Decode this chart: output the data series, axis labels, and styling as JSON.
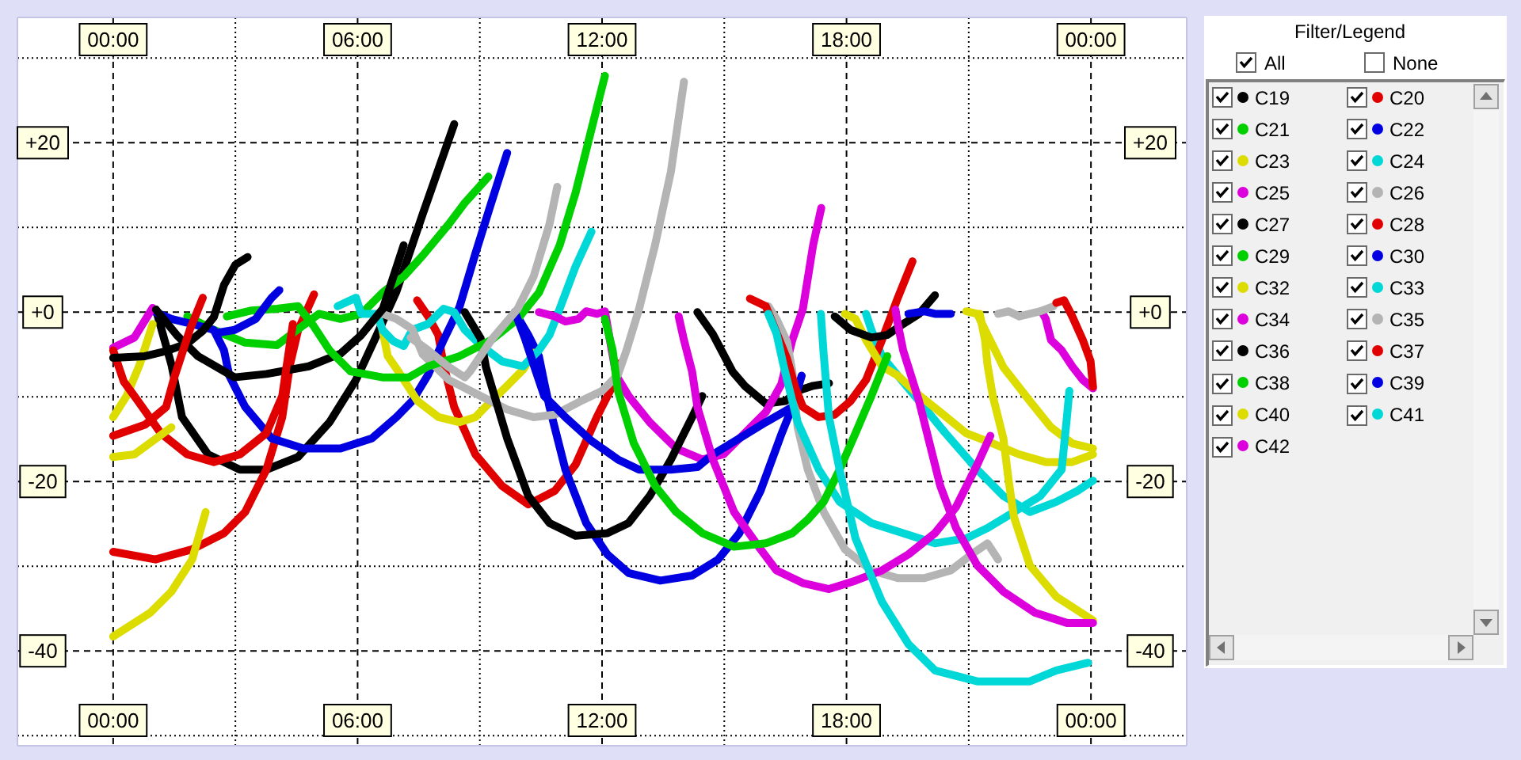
{
  "chart_data": {
    "type": "line",
    "xlim": [
      -2.35,
      26.35
    ],
    "xticks": [
      {
        "value": 0,
        "label": "00:00"
      },
      {
        "value": 3,
        "label": null
      },
      {
        "value": 6,
        "label": "06:00"
      },
      {
        "value": 9,
        "label": null
      },
      {
        "value": 12,
        "label": "12:00"
      },
      {
        "value": 15,
        "label": null
      },
      {
        "value": 18,
        "label": "18:00"
      },
      {
        "value": 21,
        "label": null
      },
      {
        "value": 24,
        "label": "00:00"
      }
    ],
    "x2lim": [
      -2.35,
      26.35
    ],
    "x2ticks": [
      {
        "value": 0,
        "label": "00:00"
      },
      {
        "value": 3,
        "label": null
      },
      {
        "value": 6,
        "label": "06:00"
      },
      {
        "value": 9,
        "label": null
      },
      {
        "value": 12,
        "label": "12:00"
      },
      {
        "value": 15,
        "label": null
      },
      {
        "value": 18,
        "label": "18:00"
      },
      {
        "value": 21,
        "label": null
      },
      {
        "value": 24,
        "label": "00:00"
      }
    ],
    "ylim": [
      -51.2,
      34.8
    ],
    "yticks": [
      {
        "value": 30,
        "label": null
      },
      {
        "value": 20,
        "label": "+20"
      },
      {
        "value": 10,
        "label": null
      },
      {
        "value": 0,
        "label": "+0"
      },
      {
        "value": -10,
        "label": null
      },
      -20,
      {
        "value": -30,
        "label": null
      },
      -40,
      {
        "value": -50,
        "label": null
      }
    ],
    "y2lim": [
      -51.2,
      34.8
    ],
    "y2ticks": [
      {
        "value": 30,
        "label": null
      },
      {
        "value": 20,
        "label": "+20"
      },
      {
        "value": 10,
        "label": null
      },
      {
        "value": 0,
        "label": "+0"
      },
      {
        "value": -10,
        "label": null
      },
      -20,
      {
        "value": -30,
        "label": null
      },
      -40,
      {
        "value": -50,
        "label": null
      }
    ],
    "grid": true,
    "legend": "right",
    "legend_title": "Filter/Legend",
    "annotations": [
      "All",
      "None"
    ],
    "series": [
      {
        "name": "C19",
        "color": "#000000",
        "x": [
          1.05,
          1.43,
          1.69,
          2.33,
          3.11,
          3.76,
          4.54,
          5.31,
          5.96,
          6.48,
          6.95,
          7.6,
          8.37,
          11.0,
          14.34,
          14.72,
          15.2,
          15.5,
          16.02,
          16.5,
          16.8,
          17.18,
          17.57
        ],
        "values": [
          0.3,
          -6.2,
          -12.4,
          -16.8,
          -18.6,
          -18.6,
          -17.1,
          -13.0,
          -8.0,
          -2.6,
          2.4,
          11.6,
          22.2,
          null,
          0,
          -2.6,
          -7.0,
          -8.7,
          -10.8,
          -10.5,
          -9.3,
          -8.7,
          -8.4
        ]
      },
      {
        "name": "C20",
        "color": "#e00000",
        "x": [
          0,
          1.04,
          1.94,
          2.72,
          3.24,
          3.76,
          4.15,
          4.34,
          4.54,
          4.93,
          6.2,
          7.46,
          7.73,
          7.98,
          8.11,
          8.37,
          8.89,
          9.54,
          10.19,
          10.84,
          11.35,
          11.87,
          12.26,
          12.45
        ],
        "values": [
          -28.3,
          -29.2,
          -28.0,
          -26.1,
          -23.6,
          -18.6,
          -12.4,
          -6.2,
          -2.1,
          2.1,
          null,
          1.4,
          -0.5,
          -2.7,
          -6.2,
          -11.2,
          -16.8,
          -20.5,
          -22.7,
          -21.1,
          -18.0,
          -12.4,
          -8.7,
          -6.0
        ]
      },
      {
        "name": "C21",
        "color": "#00d000",
        "x": [
          1.82,
          2.47,
          3.24,
          4.02,
          4.6,
          5.05,
          5.58,
          6.09,
          6.61,
          7.13,
          7.6,
          8.24,
          8.63,
          9.21
        ],
        "values": [
          -0.5,
          -2.1,
          -3.6,
          -3.9,
          -1.8,
          -0.2,
          -0.8,
          -0.2,
          2.3,
          4.2,
          6.7,
          10.4,
          12.9,
          16.0
        ]
      },
      {
        "name": "C22",
        "color": "#0000e0",
        "x": [
          1.04,
          1.43,
          1.94,
          2.47,
          2.72,
          2.85,
          3.24,
          3.89,
          4.67,
          5.58,
          6.35,
          6.95,
          7.34,
          7.73,
          8.11,
          8.5,
          8.89,
          9.28,
          9.67,
          9.76,
          9.86,
          10.19,
          10.45,
          10.58,
          10.71,
          11.1,
          11.61,
          12.13,
          12.65,
          13.43,
          14.21,
          14.85,
          15.37,
          15.89,
          16.41,
          16.67,
          16.9
        ],
        "values": [
          0,
          -0.8,
          -1.4,
          -2.1,
          -4.5,
          -7.5,
          -11.2,
          -14.9,
          -16.1,
          -16.1,
          -14.9,
          -12.4,
          -10.5,
          -7.4,
          -3.3,
          0.6,
          6.9,
          12.9,
          18.8,
          null,
          0,
          -2.7,
          -5.2,
          -8.3,
          -11.2,
          -18.6,
          -24.9,
          -28.6,
          -30.8,
          -31.7,
          -31.1,
          -29.2,
          -26.1,
          -21.1,
          -14.3,
          -11.2,
          -7.5
        ]
      },
      {
        "name": "C23",
        "color": "#dcdc00",
        "x": [
          0,
          0.33,
          0.65,
          0.97,
          3.5,
          6.61,
          6.74,
          7.0,
          7.47,
          7.99,
          8.5,
          8.89,
          9.28,
          9.67,
          10.06,
          10.32,
          15.0,
          20.94,
          21.21,
          21.4,
          21.72,
          21.85,
          22.5,
          23.02,
          23.54,
          24.05
        ],
        "values": [
          -12.4,
          -9.9,
          -6.2,
          -1.4,
          null,
          -2.1,
          -5.2,
          -7.0,
          -10.5,
          -12.4,
          -13.0,
          -12.4,
          -10.5,
          -8.7,
          -6.8,
          -4.8,
          null,
          0.1,
          -0.2,
          -2.1,
          -5.2,
          -6.5,
          -10.5,
          -13.6,
          -15.5,
          -16.1
        ]
      },
      {
        "name": "C24",
        "color": "#00d8d8",
        "x": [
          5.51,
          5.96,
          6.09,
          6.48,
          6.61,
          6.87,
          7.13,
          7.34,
          7.73,
          8.11,
          8.37,
          8.63,
          9.02,
          9.54,
          10.06,
          10.45,
          10.71,
          10.96,
          11.35,
          11.74,
          15.0,
          18.48,
          18.61,
          18.87,
          19.26,
          19.78,
          20.43,
          21.21,
          21.85,
          22.5,
          23.15,
          23.67,
          24.05
        ],
        "values": [
          0.7,
          1.7,
          -0.2,
          -0.2,
          -2.1,
          -3.4,
          -4.0,
          -2.1,
          -1.4,
          0.4,
          0,
          -2.1,
          -3.9,
          -5.8,
          -6.4,
          -4.5,
          -2.7,
          0.4,
          5.4,
          9.5,
          null,
          -0.2,
          -2.1,
          -5.2,
          -7.5,
          -10.5,
          -14.3,
          -18.6,
          -21.7,
          -23.6,
          -22.4,
          -21.1,
          -19.9
        ]
      },
      {
        "name": "C25",
        "color": "#dc00dc",
        "x": [
          0,
          0.52,
          0.97,
          5.0,
          10.45,
          10.84,
          11.1,
          11.42,
          11.61,
          11.87,
          12.07,
          12.2,
          12.35,
          12.65,
          13.17,
          13.82,
          14.46,
          14.98,
          15.5,
          16.02,
          16.4,
          16.67,
          16.93,
          17.18,
          17.38
        ],
        "values": [
          -4.2,
          -3.0,
          0.5,
          null,
          0,
          -0.5,
          -1.1,
          -0.8,
          0.1,
          -0.2,
          0.1,
          -3.5,
          -7.5,
          -9.9,
          -13.0,
          -16.1,
          -17.4,
          -16.8,
          -14.3,
          -11.8,
          -8.5,
          -3.3,
          0.4,
          7.9,
          12.3
        ]
      },
      {
        "name": "C26",
        "color": "#b4b4b4",
        "x": [
          6.61,
          6.95,
          7.34,
          7.6,
          8.24,
          9.02,
          9.67,
          10.32,
          10.84,
          11.48,
          12.0,
          12.39,
          12.6,
          12.91,
          13.3,
          13.69,
          14.01,
          15.0,
          16.08,
          16.28,
          16.54,
          16.67,
          16.8,
          17.05,
          17.44,
          17.96,
          18.61,
          19.26,
          19.91,
          20.56,
          21.07,
          21.46,
          21.72
        ],
        "values": [
          -0.2,
          -0.8,
          -2.0,
          -5.0,
          -8.0,
          -9.9,
          -11.5,
          -12.4,
          -12.1,
          -10.5,
          -9.3,
          -7.4,
          -4.5,
          0.4,
          7.9,
          16.6,
          27.2,
          null,
          0.7,
          -0.8,
          -3.5,
          -7.0,
          -13.6,
          -18.6,
          -23.6,
          -28.0,
          -30.5,
          -31.4,
          -31.4,
          -30.5,
          -28.6,
          -27.3,
          -29.2
        ]
      },
      {
        "name": "C27",
        "color": "#000000",
        "x": [
          1.05,
          1.56,
          2.08,
          2.98,
          3.76,
          4.8,
          5.58,
          6.09,
          6.62,
          7.13,
          7.9,
          8.63,
          9.02,
          9.15,
          9.67,
          10.19,
          10.71,
          11.35,
          12.13,
          12.65,
          13.17,
          13.69,
          14.21,
          14.46
        ],
        "values": [
          0.3,
          -2.7,
          -5.2,
          -7.7,
          -7.3,
          -6.4,
          -4.9,
          -2.7,
          0.4,
          7.9,
          null,
          0,
          -3.1,
          -6.5,
          -14.9,
          -21.7,
          -24.9,
          -26.4,
          -26.1,
          -24.9,
          -21.7,
          -17.4,
          -12.4,
          -9.9
        ]
      },
      {
        "name": "C28",
        "color": "#e00000",
        "x": [
          0,
          0.26,
          0.52,
          1.17,
          1.82,
          2.47,
          3.11,
          3.76,
          4.15,
          4.41,
          10.0,
          15.63,
          16.02,
          16.28,
          16.54,
          16.75,
          16.93,
          17.32,
          17.71,
          18.1,
          18.48,
          18.87,
          19.26,
          19.62
        ],
        "values": [
          -4.5,
          -8.2,
          -9.9,
          -14.3,
          -16.8,
          -17.7,
          -16.8,
          -14.3,
          -9.9,
          -1.4,
          null,
          1.6,
          0.7,
          -2.4,
          -5.5,
          -9.0,
          -11.2,
          -12.4,
          -12.1,
          -10.5,
          -8.0,
          -3.3,
          1.7,
          6.0
        ]
      },
      {
        "name": "C29",
        "color": "#00d000",
        "x": [
          2.79,
          3.4,
          4.02,
          4.54,
          4.9,
          5.31,
          5.83,
          6.61,
          7.26,
          7.73,
          8.5,
          9.28,
          9.93,
          10.45,
          10.96,
          11.35,
          11.61,
          11.87,
          12.07
        ],
        "values": [
          -0.5,
          0.2,
          0.4,
          0.7,
          -1.5,
          -4.5,
          -7.0,
          -7.7,
          -7.7,
          -6.4,
          -5.2,
          -3.3,
          -0.8,
          2.3,
          7.9,
          14.1,
          19.1,
          24.1,
          27.9
        ]
      },
      {
        "name": "C30",
        "color": "#0000e0",
        "x": [
          2.6,
          2.98,
          3.5,
          3.89,
          4.08,
          7.0,
          9.86,
          10.1,
          10.32,
          10.58,
          11.1,
          11.74,
          12.39,
          12.91,
          13.69,
          14.34,
          14.72,
          15.37,
          16.02,
          16.67
        ],
        "values": [
          -2.4,
          -2.1,
          -0.8,
          1.7,
          2.6,
          null,
          0,
          -3.0,
          -6.2,
          -9.9,
          -12.4,
          -15.2,
          -17.4,
          -18.6,
          -18.6,
          -18.3,
          -16.8,
          -14.9,
          -13.0,
          -11.2
        ]
      },
      {
        "name": "C32",
        "color": "#dcdc00",
        "x": [
          0,
          0.52,
          1.43,
          9.0,
          17.96,
          18.22,
          18.48,
          18.87,
          19.26,
          19.78,
          20.3,
          20.94,
          21.59,
          22.24,
          22.89,
          23.54,
          24.05
        ],
        "values": [
          -17.1,
          -16.8,
          -13.6,
          null,
          -0.2,
          -0.8,
          -3.3,
          -6.4,
          -7.5,
          -9.8,
          -11.8,
          -14.3,
          -15.5,
          -16.8,
          -17.7,
          -17.7,
          -16.8
        ]
      },
      {
        "name": "C33",
        "color": "#00d8d8",
        "x": [
          16.08,
          16.28,
          16.45,
          16.8,
          17.32,
          17.83,
          18.61,
          19.39,
          20.17,
          20.94,
          21.46,
          22.11,
          22.76,
          23.28,
          23.41,
          23.47
        ],
        "values": [
          -0.2,
          -2.5,
          -6.2,
          -13.0,
          -18.6,
          -22.4,
          -24.9,
          -26.1,
          -27.3,
          -26.7,
          -25.5,
          -23.6,
          -21.7,
          -18.6,
          -12.4,
          -9.3
        ]
      },
      {
        "name": "C34",
        "color": "#dc00dc",
        "x": [
          13.88,
          14.01,
          14.21,
          14.34,
          14.72,
          15.24,
          15.89,
          16.28,
          16.93,
          17.57,
          18.22,
          18.87,
          19.52,
          20.17,
          20.69,
          21.21,
          21.53,
          22.2,
          22.82,
          22.89,
          23.02,
          23.28,
          23.54,
          23.8,
          24.05
        ],
        "values": [
          -0.5,
          -3.3,
          -7.0,
          -11.2,
          -17.4,
          -23.6,
          -28.0,
          -30.5,
          -32.0,
          -32.7,
          -31.7,
          -30.5,
          -28.6,
          -26.1,
          -23.0,
          -18.0,
          -14.6,
          null,
          -0.2,
          -0.8,
          -3.3,
          -4.5,
          -6.4,
          -8.0,
          -9.0
        ]
      },
      {
        "name": "C35",
        "color": "#b4b4b4",
        "x": [
          7.3,
          7.73,
          8.24,
          8.63,
          8.76,
          9.28,
          9.93,
          10.32,
          10.71,
          10.9,
          16.0,
          21.72,
          21.98,
          22.24,
          22.5,
          22.76,
          23.08
        ],
        "values": [
          -3.0,
          -4.5,
          -6.5,
          -7.7,
          -7.0,
          -3.3,
          0.4,
          4.2,
          10.4,
          14.8,
          null,
          -0.2,
          0.1,
          -0.5,
          -0.2,
          0.1,
          0.7
        ]
      },
      {
        "name": "C36",
        "color": "#000000",
        "x": [
          0,
          0.78,
          1.3,
          1.82,
          2.2,
          2.47,
          2.72,
          3.0,
          3.3,
          10.0,
          17.71,
          18.1,
          18.61,
          19.0,
          19.39,
          19.78,
          20.17
        ],
        "values": [
          -5.4,
          -5.2,
          -4.6,
          -3.7,
          -2.2,
          -0.6,
          3.2,
          5.6,
          6.5,
          null,
          -0.5,
          -2.1,
          -3.0,
          -2.7,
          -1.4,
          -0.2,
          2.0
        ]
      },
      {
        "name": "C37",
        "color": "#e00000",
        "x": [
          0,
          0.78,
          1.3,
          1.5,
          1.88,
          2.2,
          12.0,
          23.15,
          23.34,
          23.54,
          23.8,
          23.99,
          24.05
        ],
        "values": [
          -14.6,
          -13.3,
          -11.2,
          -7.7,
          -2.1,
          1.7,
          null,
          1.1,
          1.4,
          -0.5,
          -3.3,
          -5.8,
          -8.8
        ]
      },
      {
        "name": "C38",
        "color": "#00d000",
        "x": [
          12.07,
          12.26,
          12.39,
          12.78,
          13.3,
          13.82,
          14.46,
          15.24,
          16.02,
          16.67,
          17.05,
          17.44,
          17.83,
          18.22,
          18.61,
          19.0
        ],
        "values": [
          -0.8,
          -4.5,
          -9.3,
          -15.5,
          -20.5,
          -23.6,
          -26.1,
          -27.7,
          -27.3,
          -26.1,
          -24.5,
          -22.4,
          -18.6,
          -14.3,
          -9.9,
          -5.2
        ]
      },
      {
        "name": "C39",
        "color": "#0000e0",
        "x": [
          19.52,
          19.91,
          20.17,
          20.56
        ],
        "values": [
          -0.2,
          0.1,
          -0.2,
          -0.2
        ]
      },
      {
        "name": "C40",
        "color": "#dcdc00",
        "x": [
          0,
          0.91,
          1.43,
          1.94,
          2.27,
          12.0,
          21.27,
          21.4,
          21.46,
          21.59,
          21.85,
          21.98,
          22.11,
          22.5,
          23.15,
          24.05
        ],
        "values": [
          -38.3,
          -35.5,
          -33.0,
          -29.2,
          -23.6,
          null,
          -0.2,
          -3.3,
          -6.2,
          -9.9,
          -14.9,
          -19.9,
          -24.2,
          -29.9,
          -33.6,
          -36.4
        ]
      },
      {
        "name": "C41",
        "color": "#00d8d8",
        "x": [
          17.37,
          17.44,
          17.57,
          17.83,
          18.22,
          18.87,
          19.52,
          20.17,
          21.21,
          22.5,
          23.15,
          23.93
        ],
        "values": [
          -0.2,
          -5.0,
          -12.4,
          -18.6,
          -26.7,
          -34.2,
          -39.2,
          -42.3,
          -43.6,
          -43.6,
          -42.3,
          -41.4
        ]
      },
      {
        "name": "C42",
        "color": "#dc00dc",
        "x": [
          19.2,
          19.26,
          19.39,
          19.52,
          19.78,
          20.04,
          20.3,
          20.69,
          21.21,
          21.85,
          22.63,
          23.41,
          24.05
        ],
        "values": [
          0.3,
          -1.4,
          -4.5,
          -6.5,
          -10.5,
          -15.5,
          -20.5,
          -25.5,
          -29.9,
          -33.0,
          -35.5,
          -36.7,
          -36.7
        ]
      }
    ]
  }
}
